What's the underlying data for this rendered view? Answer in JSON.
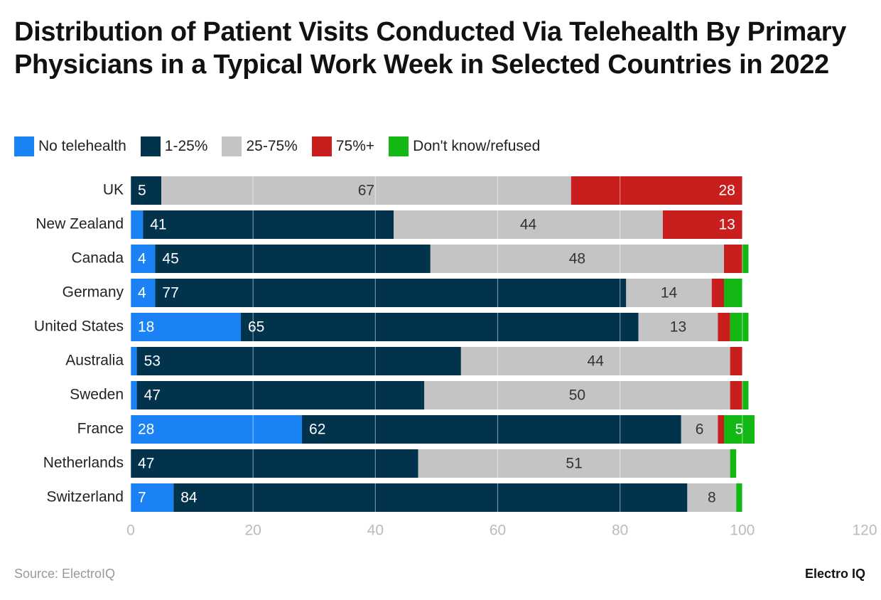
{
  "chart_data": {
    "type": "stacked-bar-horizontal",
    "title": "Distribution of Patient Visits Conducted Via Telehealth By Primary Physicians in a Typical Work Week in Selected Countries in 2022",
    "categories": [
      "UK",
      "New Zealand",
      "Canada",
      "Germany",
      "United States",
      "Australia",
      "Sweden",
      "France",
      "Netherlands",
      "Switzerland"
    ],
    "series": [
      {
        "name": "No telehealth",
        "color": "#1a82f4",
        "values": [
          0,
          2,
          4,
          4,
          18,
          1,
          1,
          28,
          0,
          7
        ]
      },
      {
        "name": "1-25%",
        "color": "#02334d",
        "values": [
          5,
          41,
          45,
          77,
          65,
          53,
          47,
          62,
          47,
          84
        ]
      },
      {
        "name": "25-75%",
        "color": "#c4c4c4",
        "values": [
          67,
          44,
          48,
          14,
          13,
          44,
          50,
          6,
          51,
          8
        ]
      },
      {
        "name": "75%+",
        "color": "#c81e1e",
        "values": [
          28,
          13,
          3,
          2,
          2,
          2,
          2,
          1,
          0,
          0
        ]
      },
      {
        "name": "Don't know/refused",
        "color": "#14b814",
        "values": [
          0,
          0,
          1,
          3,
          3,
          0,
          1,
          5,
          1,
          1
        ]
      }
    ],
    "xlim": [
      0,
      120
    ],
    "xticks": [
      0,
      20,
      40,
      60,
      80,
      100,
      120
    ],
    "grid": true,
    "source": "Source: ElectroIQ",
    "brand": "Electro IQ"
  }
}
